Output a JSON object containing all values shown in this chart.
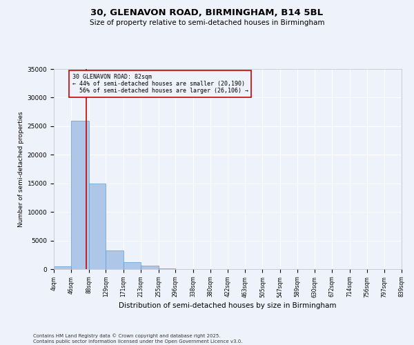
{
  "title_line1": "30, GLENAVON ROAD, BIRMINGHAM, B14 5BL",
  "title_line2": "Size of property relative to semi-detached houses in Birmingham",
  "xlabel": "Distribution of semi-detached houses by size in Birmingham",
  "ylabel": "Number of semi-detached properties",
  "bin_edges": [
    4,
    46,
    88,
    129,
    171,
    213,
    255,
    296,
    338,
    380,
    422,
    463,
    505,
    547,
    589,
    630,
    672,
    714,
    756,
    797,
    839
  ],
  "bin_labels": [
    "4sqm",
    "46sqm",
    "88sqm",
    "129sqm",
    "171sqm",
    "213sqm",
    "255sqm",
    "296sqm",
    "338sqm",
    "380sqm",
    "422sqm",
    "463sqm",
    "505sqm",
    "547sqm",
    "589sqm",
    "630sqm",
    "672sqm",
    "714sqm",
    "756sqm",
    "797sqm",
    "839sqm"
  ],
  "bar_heights": [
    500,
    26000,
    15000,
    3200,
    1200,
    600,
    80,
    50,
    30,
    20,
    15,
    10,
    8,
    5,
    3,
    2,
    1,
    1,
    0,
    0
  ],
  "bar_color": "#aec6e8",
  "bar_edgecolor": "#5b9bd5",
  "property_size": 82,
  "property_label": "30 GLENAVON ROAD: 82sqm",
  "pct_smaller": 44,
  "pct_larger": 56,
  "n_smaller": 20190,
  "n_larger": 26106,
  "vline_color": "#cc0000",
  "ylim": [
    0,
    35000
  ],
  "yticks": [
    0,
    5000,
    10000,
    15000,
    20000,
    25000,
    30000,
    35000
  ],
  "background_color": "#eef2fb",
  "grid_color": "#ffffff",
  "footer_line1": "Contains HM Land Registry data © Crown copyright and database right 2025.",
  "footer_line2": "Contains public sector information licensed under the Open Government Licence v3.0."
}
